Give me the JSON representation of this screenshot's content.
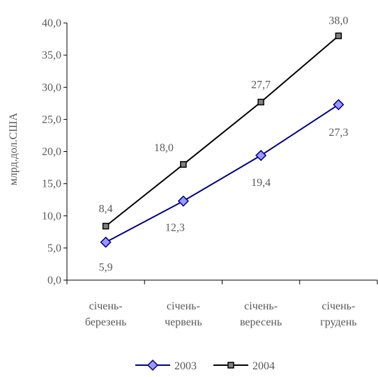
{
  "chart_data": {
    "type": "line",
    "title": "",
    "xlabel": "",
    "ylabel": "млрд.дол.США",
    "ylim": [
      0,
      40
    ],
    "ytick_step": 5,
    "ytick_labels": [
      "0,0",
      "5,0",
      "10,0",
      "15,0",
      "20,0",
      "25,0",
      "30,0",
      "35,0",
      "40,0"
    ],
    "grid": false,
    "legend_position": "bottom",
    "categories": [
      [
        "січень-",
        "березень"
      ],
      [
        "січень-",
        "червень"
      ],
      [
        "січень-",
        "вересень"
      ],
      [
        "січень-",
        "грудень"
      ]
    ],
    "series": [
      {
        "name": "2003",
        "values": [
          5.9,
          12.3,
          19.4,
          27.3
        ],
        "labels": [
          "5,9",
          "12,3",
          "19,4",
          "27,3"
        ],
        "color": "#000080",
        "marker": "diamond",
        "marker_fill": "#9999ff"
      },
      {
        "name": "2004",
        "values": [
          8.4,
          18.0,
          27.7,
          38.0
        ],
        "labels": [
          "8,4",
          "18,0",
          "27,7",
          "38,0"
        ],
        "color": "#000000",
        "marker": "square",
        "marker_fill": "#808080"
      }
    ]
  }
}
